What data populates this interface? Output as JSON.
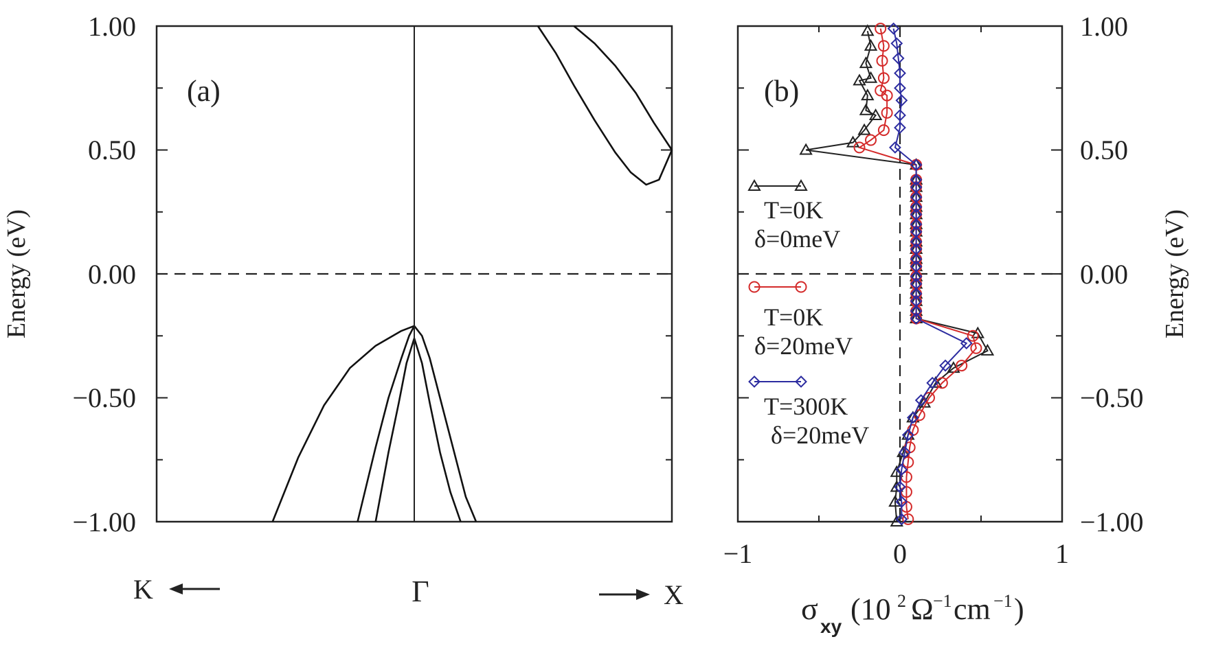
{
  "chart_data": [
    {
      "type": "line",
      "panel_label": "(a)",
      "ylabel": "Energy (eV)",
      "ylim": [
        -1.0,
        1.0
      ],
      "yticks": [
        "1.00",
        "0.50",
        "0.00",
        "−0.50",
        "−1.00"
      ],
      "ytick_values": [
        1.0,
        0.5,
        0.0,
        -0.5,
        -1.0
      ],
      "xlim": [
        -1.0,
        1.0
      ],
      "x_labels": {
        "left": "K",
        "center": "Γ",
        "right": "X"
      },
      "fermi_level": 0.0,
      "series": [
        {
          "x": [
            -0.55,
            -0.45,
            -0.35,
            -0.25,
            -0.15,
            -0.05,
            0.0
          ],
          "y": [
            -1.0,
            -0.74,
            -0.53,
            -0.38,
            -0.29,
            -0.23,
            -0.21
          ]
        },
        {
          "x": [
            -0.22,
            -0.15,
            -0.1,
            -0.05,
            -0.02,
            0.0,
            0.03,
            0.06,
            0.1,
            0.15,
            0.2,
            0.24
          ],
          "y": [
            -1.0,
            -0.7,
            -0.5,
            -0.34,
            -0.25,
            -0.21,
            -0.25,
            -0.34,
            -0.5,
            -0.7,
            -0.9,
            -1.0
          ]
        },
        {
          "x": [
            -0.15,
            -0.1,
            -0.06,
            -0.03,
            0.0,
            0.03,
            0.06,
            0.1,
            0.14,
            0.18
          ],
          "y": [
            -1.0,
            -0.72,
            -0.52,
            -0.36,
            -0.26,
            -0.36,
            -0.52,
            -0.72,
            -0.88,
            -1.0
          ]
        },
        {
          "x": [
            0.48,
            0.55,
            0.62,
            0.7,
            0.78,
            0.84,
            0.9,
            0.95,
            1.0
          ],
          "y": [
            1.0,
            0.89,
            0.76,
            0.62,
            0.49,
            0.41,
            0.36,
            0.38,
            0.5
          ]
        },
        {
          "x": [
            0.62,
            0.7,
            0.78,
            0.86,
            0.93,
            1.0
          ],
          "y": [
            1.0,
            0.93,
            0.84,
            0.73,
            0.61,
            0.5
          ]
        }
      ]
    },
    {
      "type": "line",
      "panel_label": "(b)",
      "ylabel": "Energy (eV)",
      "xlabel": "σxy (10² Ω⁻¹cm⁻¹)",
      "xlim": [
        -1,
        1
      ],
      "ylim": [
        -1.0,
        1.0
      ],
      "xticks": [
        "−1",
        "0",
        "1"
      ],
      "xtick_values": [
        -1,
        0,
        1
      ],
      "yticks": [
        "1.00",
        "0.50",
        "0.00",
        "−0.50",
        "−1.00"
      ],
      "ytick_values": [
        1.0,
        0.5,
        0.0,
        -0.5,
        -1.0
      ],
      "fermi_level": 0.0,
      "zero_line": 0.0,
      "series": [
        {
          "name": "T=0K δ=0meV",
          "color": "#222222",
          "marker": "triangle",
          "points": [
            [
              -0.2,
              0.98
            ],
            [
              -0.18,
              0.92
            ],
            [
              -0.21,
              0.85
            ],
            [
              -0.18,
              0.79
            ],
            [
              -0.25,
              0.78
            ],
            [
              -0.2,
              0.72
            ],
            [
              -0.21,
              0.66
            ],
            [
              -0.15,
              0.64
            ],
            [
              -0.22,
              0.58
            ],
            [
              -0.29,
              0.53
            ],
            [
              -0.58,
              0.5
            ],
            [
              0.1,
              0.44
            ],
            [
              0.1,
              0.38
            ],
            [
              0.1,
              0.35
            ],
            [
              0.1,
              0.31
            ],
            [
              0.1,
              0.27
            ],
            [
              0.1,
              0.24
            ],
            [
              0.1,
              0.2
            ],
            [
              0.1,
              0.17
            ],
            [
              0.1,
              0.13
            ],
            [
              0.1,
              0.1
            ],
            [
              0.1,
              0.06
            ],
            [
              0.1,
              0.03
            ],
            [
              0.1,
              -0.01
            ],
            [
              0.1,
              -0.04
            ],
            [
              0.1,
              -0.08
            ],
            [
              0.1,
              -0.11
            ],
            [
              0.1,
              -0.15
            ],
            [
              0.1,
              -0.18
            ],
            [
              0.48,
              -0.24
            ],
            [
              0.54,
              -0.31
            ],
            [
              0.33,
              -0.38
            ],
            [
              0.22,
              -0.44
            ],
            [
              0.15,
              -0.52
            ],
            [
              0.08,
              -0.58
            ],
            [
              0.05,
              -0.65
            ],
            [
              0.02,
              -0.72
            ],
            [
              -0.02,
              -0.8
            ],
            [
              -0.02,
              -0.86
            ],
            [
              -0.03,
              -0.92
            ],
            [
              -0.02,
              -1.0
            ]
          ]
        },
        {
          "name": "T=0K δ=20meV",
          "color": "#d42a2a",
          "marker": "circle",
          "points": [
            [
              -0.12,
              0.99
            ],
            [
              -0.1,
              0.92
            ],
            [
              -0.11,
              0.86
            ],
            [
              -0.1,
              0.79
            ],
            [
              -0.12,
              0.74
            ],
            [
              -0.08,
              0.72
            ],
            [
              -0.08,
              0.65
            ],
            [
              -0.1,
              0.58
            ],
            [
              -0.18,
              0.54
            ],
            [
              -0.25,
              0.51
            ],
            [
              0.1,
              0.44
            ],
            [
              0.1,
              0.38
            ],
            [
              0.1,
              0.35
            ],
            [
              0.1,
              0.31
            ],
            [
              0.1,
              0.27
            ],
            [
              0.1,
              0.24
            ],
            [
              0.1,
              0.2
            ],
            [
              0.1,
              0.17
            ],
            [
              0.1,
              0.13
            ],
            [
              0.1,
              0.1
            ],
            [
              0.1,
              0.06
            ],
            [
              0.1,
              0.03
            ],
            [
              0.1,
              -0.01
            ],
            [
              0.1,
              -0.04
            ],
            [
              0.1,
              -0.08
            ],
            [
              0.1,
              -0.11
            ],
            [
              0.1,
              -0.15
            ],
            [
              0.1,
              -0.18
            ],
            [
              0.45,
              -0.25
            ],
            [
              0.47,
              -0.3
            ],
            [
              0.38,
              -0.37
            ],
            [
              0.26,
              -0.44
            ],
            [
              0.18,
              -0.5
            ],
            [
              0.12,
              -0.57
            ],
            [
              0.08,
              -0.63
            ],
            [
              0.06,
              -0.7
            ],
            [
              0.05,
              -0.76
            ],
            [
              0.04,
              -0.82
            ],
            [
              0.04,
              -0.88
            ],
            [
              0.04,
              -0.94
            ],
            [
              0.05,
              -0.99
            ]
          ]
        },
        {
          "name": "T=300K δ=20meV",
          "color": "#2c2ca0",
          "marker": "diamond",
          "points": [
            [
              -0.04,
              0.99
            ],
            [
              -0.02,
              0.93
            ],
            [
              -0.01,
              0.87
            ],
            [
              0.0,
              0.81
            ],
            [
              0.0,
              0.75
            ],
            [
              0.01,
              0.7
            ],
            [
              0.0,
              0.64
            ],
            [
              0.0,
              0.59
            ],
            [
              -0.03,
              0.51
            ],
            [
              0.1,
              0.44
            ],
            [
              0.1,
              0.38
            ],
            [
              0.1,
              0.35
            ],
            [
              0.1,
              0.31
            ],
            [
              0.1,
              0.27
            ],
            [
              0.1,
              0.24
            ],
            [
              0.1,
              0.2
            ],
            [
              0.1,
              0.17
            ],
            [
              0.1,
              0.13
            ],
            [
              0.1,
              0.1
            ],
            [
              0.1,
              0.06
            ],
            [
              0.1,
              0.03
            ],
            [
              0.1,
              -0.01
            ],
            [
              0.1,
              -0.04
            ],
            [
              0.1,
              -0.08
            ],
            [
              0.1,
              -0.11
            ],
            [
              0.1,
              -0.15
            ],
            [
              0.1,
              -0.18
            ],
            [
              0.41,
              -0.28
            ],
            [
              0.28,
              -0.37
            ],
            [
              0.2,
              -0.44
            ],
            [
              0.13,
              -0.51
            ],
            [
              0.08,
              -0.58
            ],
            [
              0.05,
              -0.65
            ],
            [
              0.03,
              -0.72
            ],
            [
              0.01,
              -0.79
            ],
            [
              0.0,
              -0.86
            ],
            [
              0.01,
              -0.92
            ],
            [
              0.01,
              -0.99
            ]
          ]
        }
      ],
      "legend": [
        {
          "line1": "T=0K",
          "line2": "δ=0meV",
          "series_index": 0
        },
        {
          "line1": "T=0K",
          "line2": "δ=20meV",
          "series_index": 1
        },
        {
          "line1": "T=300K",
          "line2": "δ=20meV",
          "series_index": 2
        }
      ]
    }
  ]
}
